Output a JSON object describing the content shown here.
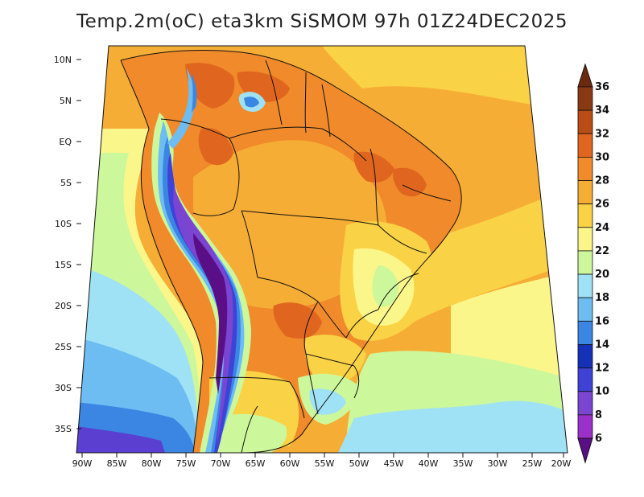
{
  "title": "Temp.2m(oC) eta3km SiSMOM 97h 01Z24DEC2025",
  "lat_labels": [
    "10N",
    "5N",
    "EQ",
    "5S",
    "10S",
    "15S",
    "20S",
    "25S",
    "30S",
    "35S"
  ],
  "lon_labels": [
    "90W",
    "85W",
    "80W",
    "75W",
    "70W",
    "65W",
    "60W",
    "55W",
    "50W",
    "45W",
    "40W",
    "35W",
    "30W",
    "25W",
    "20W"
  ],
  "colorbar": {
    "levels": [
      "36",
      "34",
      "32",
      "30",
      "28",
      "26",
      "24",
      "22",
      "20",
      "18",
      "16",
      "14",
      "12",
      "10",
      "8",
      "6"
    ],
    "colors": [
      "#6b2a0e",
      "#8a3a12",
      "#b84d15",
      "#e0661f",
      "#f08a2a",
      "#f6ad35",
      "#fad245",
      "#fbf68a",
      "#cdf79b",
      "#9fe2f5",
      "#6dbdf2",
      "#3b86e3",
      "#1730b8",
      "#3e43d6",
      "#7a45d1",
      "#9b30c9",
      "#5b0f86"
    ]
  }
}
